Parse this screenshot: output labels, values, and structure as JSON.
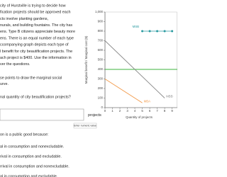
{
  "question": {
    "intro": [
      "city of Hurstville is trying to decide how",
      "fication projects should be approved each",
      "cts involve planting gardens,",
      "nurals, and building fountains. The city has",
      "ens. Type B citizens appreciate beauty more",
      "ens. There is an equal number of each type",
      "ccompanying graph depicts each type of",
      "l benefit for city beautification projects. The",
      "ach project is $400. Use the information in",
      "ver the questions."
    ],
    "instruction": [
      "se points to draw the marginal social",
      "urve."
    ],
    "q1": "nal quantity of city beautification projects?",
    "unit": "projects",
    "hint": "Enter numeric value",
    "q2": "on is a public good because:",
    "options": [
      "al in consumption and nonexcludable.",
      "rival in consumption and excludable.",
      "rrival in consumption and nonexcludable.",
      "al in consumption and excludable."
    ]
  },
  "chart_data": {
    "type": "line",
    "x_label": "Quantity of projects",
    "y_label": "Marginal benefit / Marginal cost ($)",
    "xlim": [
      0,
      9.7
    ],
    "xticks": [
      0,
      1,
      2,
      3,
      4,
      5,
      6,
      7,
      8,
      9
    ],
    "ylim": [
      0,
      1000
    ],
    "yticks": [
      0,
      100,
      200,
      300,
      400,
      500,
      600,
      700,
      800,
      900,
      {
        "value": 1000,
        "label": "1,000"
      }
    ],
    "series": [
      {
        "name": "MSB",
        "color": "#2a9aa0",
        "markers": true,
        "x": [
          5,
          6,
          7,
          8,
          9
        ],
        "values": [
          800,
          800,
          800,
          800,
          800
        ]
      },
      {
        "color": "#3db33d",
        "x": [
          0,
          9.7
        ],
        "values": [
          400,
          400
        ]
      },
      {
        "name": "MBB",
        "color": "#8a8a8a",
        "x": [
          0,
          8
        ],
        "values": [
          700,
          100
        ]
      },
      {
        "name": "MBA",
        "color": "#f29a4a",
        "x": [
          0,
          5
        ],
        "values": [
          300,
          50
        ]
      }
    ]
  }
}
